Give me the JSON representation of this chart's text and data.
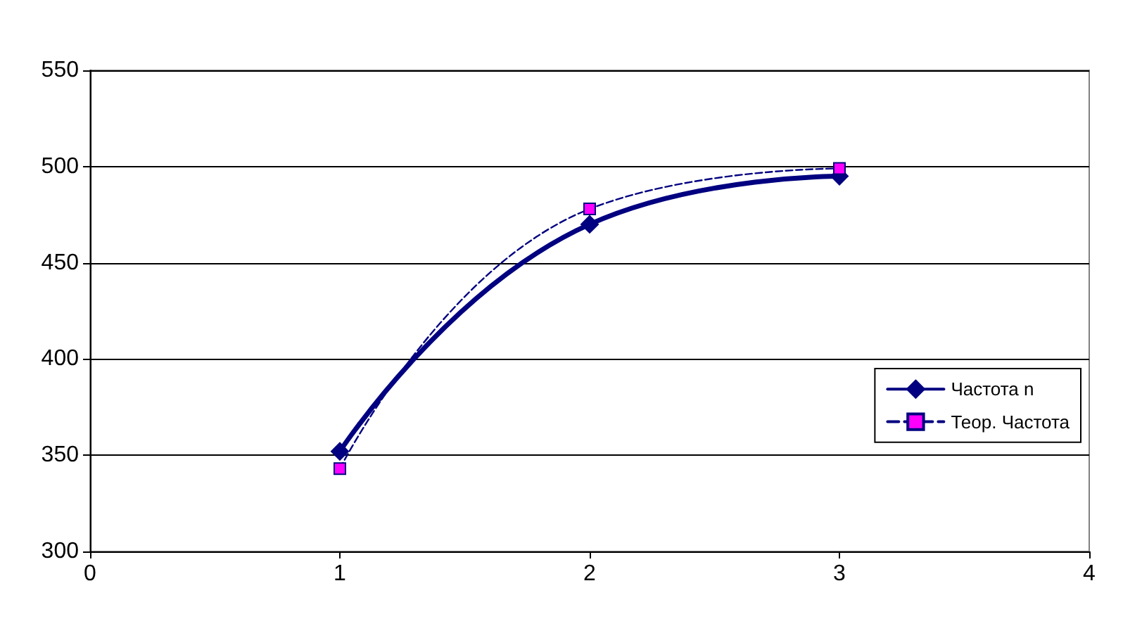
{
  "chart_data": {
    "type": "line",
    "x": [
      1,
      2,
      3
    ],
    "xlim": [
      0,
      4
    ],
    "xticks": [
      0,
      1,
      2,
      3,
      4
    ],
    "ylim": [
      300,
      550
    ],
    "yticks": [
      300,
      350,
      400,
      450,
      500,
      550
    ],
    "grid": "y",
    "legend": "right",
    "series": [
      {
        "name": "Частота n",
        "color": "#000080",
        "values": [
          352,
          470,
          495
        ],
        "marker": "diamond",
        "line_style": "solid"
      },
      {
        "name": "Теор. Частота",
        "color": "#000080",
        "values": [
          343,
          478,
          499
        ],
        "marker": "square",
        "line_style": "dashed"
      }
    ]
  }
}
